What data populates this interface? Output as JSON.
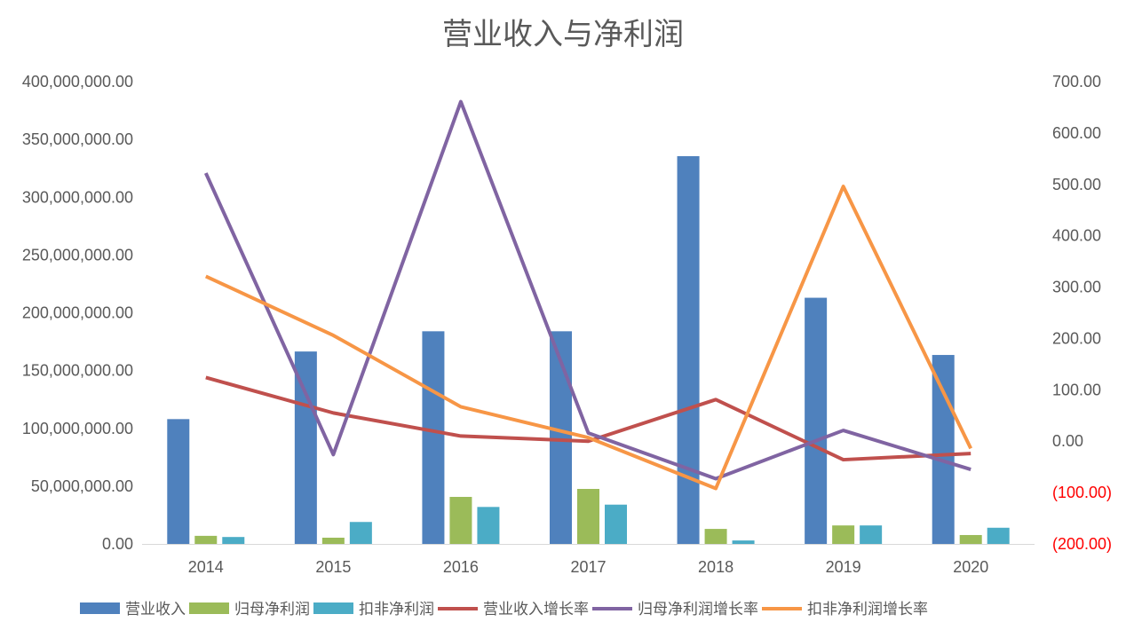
{
  "chart_data": {
    "type": "bar+line",
    "title": "营业收入与净利润",
    "categories": [
      "2014",
      "2015",
      "2016",
      "2017",
      "2018",
      "2019",
      "2020"
    ],
    "left_axis": {
      "range": [
        0,
        400000000
      ],
      "ticks": [
        "0.00",
        "50,000,000.00",
        "100,000,000.00",
        "150,000,000.00",
        "200,000,000.00",
        "250,000,000.00",
        "300,000,000.00",
        "350,000,000.00",
        "400,000,000.00"
      ]
    },
    "right_axis": {
      "range": [
        -200,
        700
      ],
      "ticks": [
        "(200.00)",
        "(100.00)",
        "0.00",
        "100.00",
        "200.00",
        "300.00",
        "400.00",
        "500.00",
        "600.00",
        "700.00"
      ],
      "negative_color": "#ff0000"
    },
    "bar_series": [
      {
        "name": "营业收入",
        "color": "#4f81bd",
        "values": [
          108000000,
          166500000,
          184000000,
          184000000,
          335500000,
          213000000,
          163500000
        ]
      },
      {
        "name": "归母净利润",
        "color": "#9bbb59",
        "values": [
          7000000,
          5400000,
          40700000,
          47600000,
          13000000,
          16000000,
          7700000
        ]
      },
      {
        "name": "扣非净利润",
        "color": "#4bacc6",
        "values": [
          6000000,
          19000000,
          32000000,
          34000000,
          3000000,
          16000000,
          14000000
        ]
      }
    ],
    "line_series": [
      {
        "name": "营业收入增长率",
        "color": "#c0504d",
        "values": [
          124,
          55,
          10,
          0,
          81,
          -36,
          -24
        ]
      },
      {
        "name": "归母净利润增长率",
        "color": "#8064a2",
        "values": [
          522,
          -26,
          661,
          16,
          -73,
          21,
          -55
        ]
      },
      {
        "name": "扣非净利润增长率",
        "color": "#f79646",
        "values": [
          321,
          206,
          67,
          7,
          -92,
          496,
          -14
        ]
      }
    ],
    "legend_position": "bottom",
    "grid": false
  }
}
